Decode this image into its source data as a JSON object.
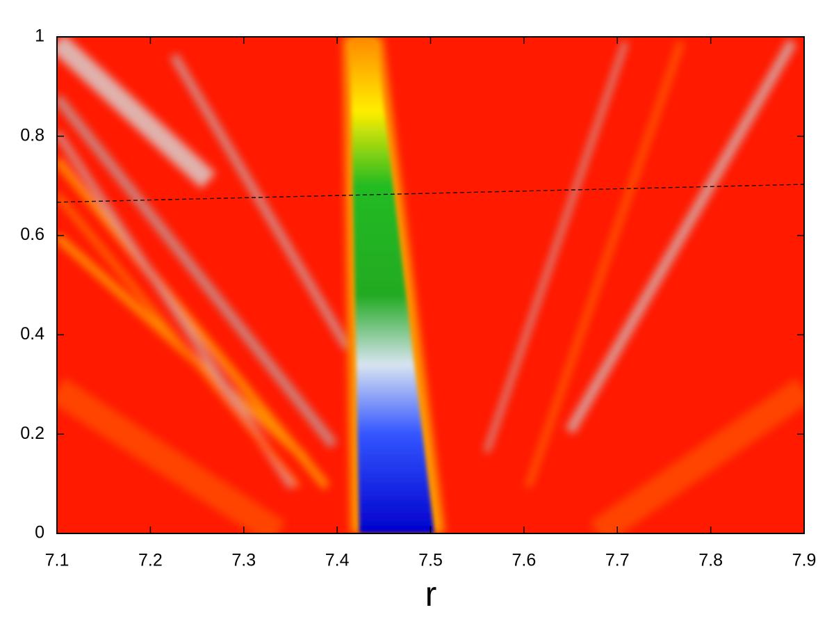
{
  "chart_data": {
    "type": "heatmap",
    "x_label": "r",
    "xlim": [
      7.1,
      7.9
    ],
    "xticks": [
      7.1,
      7.2,
      7.3,
      7.4,
      7.5,
      7.6,
      7.7,
      7.8,
      7.9
    ],
    "ylim": [
      0,
      1
    ],
    "yticks": [
      0,
      0.2,
      0.4,
      0.6,
      0.8,
      1
    ],
    "series": [
      {
        "type": "line",
        "color": "#000000",
        "dashed": true,
        "x": [
          7.1,
          7.9
        ],
        "values": [
          0.667,
          0.703
        ]
      }
    ]
  }
}
